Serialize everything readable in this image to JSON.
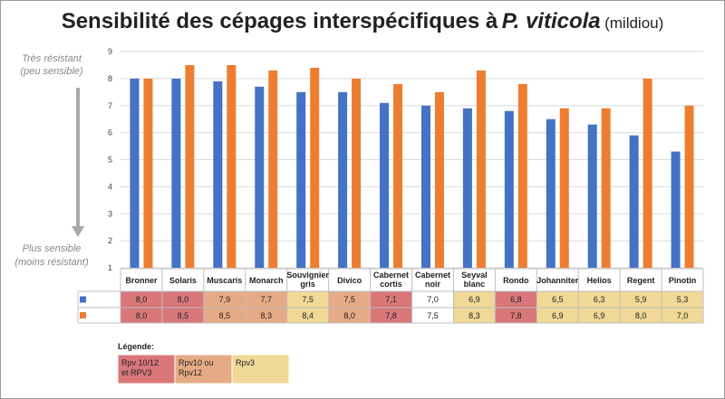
{
  "title": {
    "main": "Sensibilité des cépages interspécifiques à",
    "italic": "P. viticola",
    "suffix": "(mildiou)"
  },
  "side_labels": {
    "top_line1": "Très résistant",
    "top_line2": "(peu sensible)",
    "bottom_line1": "Plus sensible",
    "bottom_line2": "(moins résistant)"
  },
  "legend": {
    "title": "Légende:",
    "items": [
      {
        "key": "a",
        "lines": [
          "Rpv 10/12",
          "et RPV3"
        ],
        "color": "#d9777a"
      },
      {
        "key": "b",
        "lines": [
          "Rpv10 ou",
          "Rpv12"
        ],
        "color": "#e6ab86"
      },
      {
        "key": "c",
        "lines": [
          "Rpv3"
        ],
        "color": "#f0d896"
      }
    ]
  },
  "chart_data": {
    "type": "bar",
    "categories": [
      [
        "Bronner"
      ],
      [
        "Solaris"
      ],
      [
        "Muscaris"
      ],
      [
        "Monarch"
      ],
      [
        "Souvignier",
        "gris"
      ],
      [
        "Divico"
      ],
      [
        "Cabernet",
        "cortis"
      ],
      [
        "Cabernet",
        "noir"
      ],
      [
        "Seyval",
        "blanc"
      ],
      [
        "Rondo"
      ],
      [
        "Johanniter"
      ],
      [
        "Helios"
      ],
      [
        "Regent"
      ],
      [
        "Pinotin"
      ]
    ],
    "series": [
      {
        "color": "#4472c4",
        "values": [
          8.0,
          8.0,
          7.9,
          7.7,
          7.5,
          7.5,
          7.1,
          7.0,
          6.9,
          6.8,
          6.5,
          6.3,
          5.9,
          5.3
        ]
      },
      {
        "color": "#ed7d31",
        "values": [
          8.0,
          8.5,
          8.5,
          8.3,
          8.4,
          8.0,
          7.8,
          7.5,
          8.3,
          7.8,
          6.9,
          6.9,
          8.0,
          7.0
        ]
      }
    ],
    "table": {
      "rows": [
        [
          "8,0",
          "8,0",
          "7,9",
          "7,7",
          "7,5",
          "7,5",
          "7,1",
          "7,0",
          "6,9",
          "6,8",
          "6,5",
          "6,3",
          "5,9",
          "5,3"
        ],
        [
          "8,0",
          "8,5",
          "8,5",
          "8,3",
          "8,4",
          "8,0",
          "7,8",
          "7,5",
          "8,3",
          "7,8",
          "6,9",
          "6,9",
          "8,0",
          "7,0"
        ]
      ],
      "groups": [
        "a",
        "a",
        "b",
        "b",
        "c",
        "b",
        "a",
        "none",
        "c",
        "a",
        "c",
        "c",
        "c",
        "c"
      ]
    },
    "ylim": [
      1,
      9
    ],
    "yticks": [
      1,
      2,
      3,
      4,
      5,
      6,
      7,
      8,
      9
    ],
    "grid": true
  }
}
